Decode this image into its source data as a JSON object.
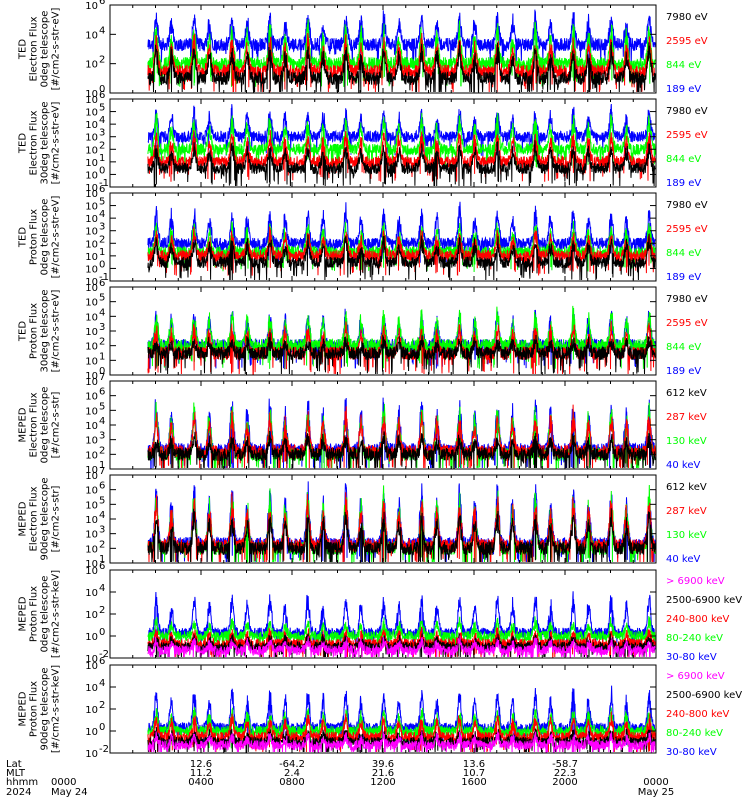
{
  "colors": {
    "black": "#000000",
    "red": "#ff0000",
    "green": "#00ff00",
    "blue": "#0000ff",
    "magenta": "#ff00ff"
  },
  "chart_data": [
    {
      "type": "line",
      "ylabel": [
        "TED",
        "Electron Flux",
        "0deg telescope",
        "[#/cm2-s-str-eV]"
      ],
      "yscale": "log",
      "ylim": [
        1,
        1000000
      ],
      "yticks": [
        {
          "b": "10",
          "e": "0",
          "v": 1
        },
        {
          "b": "10",
          "e": "2",
          "v": 100
        },
        {
          "b": "10",
          "e": "4",
          "v": 10000
        },
        {
          "b": "10",
          "e": "6",
          "v": 1000000
        }
      ],
      "legend": [
        {
          "label": "7980 eV",
          "color": "#000000"
        },
        {
          "label": "2595 eV",
          "color": "#ff0000"
        },
        {
          "label": "844 eV",
          "color": "#00ff00"
        },
        {
          "label": "189 eV",
          "color": "#0000ff"
        }
      ],
      "series": [
        {
          "color": "#000000",
          "base": 10,
          "peak": 2000
        },
        {
          "color": "#ff0000",
          "base": 30,
          "peak": 8000
        },
        {
          "color": "#00ff00",
          "base": 100,
          "peak": 60000
        },
        {
          "color": "#0000ff",
          "base": 2000,
          "peak": 300000
        }
      ]
    },
    {
      "type": "line",
      "ylabel": [
        "TED",
        "Electron Flux",
        "30deg telescope",
        "[#/cm2-s-str-eV]"
      ],
      "yscale": "log",
      "ylim": [
        0.1,
        1000000
      ],
      "yticks": [
        {
          "b": "10",
          "e": "-1",
          "v": 0.1
        },
        {
          "b": "10",
          "e": "0",
          "v": 1
        },
        {
          "b": "10",
          "e": "1",
          "v": 10
        },
        {
          "b": "10",
          "e": "2",
          "v": 100
        },
        {
          "b": "10",
          "e": "3",
          "v": 1000
        },
        {
          "b": "10",
          "e": "4",
          "v": 10000
        },
        {
          "b": "10",
          "e": "5",
          "v": 100000
        },
        {
          "b": "10",
          "e": "6",
          "v": 1000000
        }
      ],
      "legend": [
        {
          "label": "7980 eV",
          "color": "#000000"
        },
        {
          "label": "2595 eV",
          "color": "#ff0000"
        },
        {
          "label": "844 eV",
          "color": "#00ff00"
        },
        {
          "label": "189 eV",
          "color": "#0000ff"
        }
      ],
      "series": [
        {
          "color": "#000000",
          "base": 3,
          "peak": 300
        },
        {
          "color": "#ff0000",
          "base": 10,
          "peak": 3000
        },
        {
          "color": "#00ff00",
          "base": 100,
          "peak": 50000
        },
        {
          "color": "#0000ff",
          "base": 1000,
          "peak": 200000
        }
      ]
    },
    {
      "type": "line",
      "ylabel": [
        "TED",
        "Proton Flux",
        "0deg telescope",
        "[#/cm2-s-str-eV]"
      ],
      "yscale": "log",
      "ylim": [
        0.1,
        1000000
      ],
      "yticks": [
        {
          "b": "10",
          "e": "-1",
          "v": 0.1
        },
        {
          "b": "10",
          "e": "0",
          "v": 1
        },
        {
          "b": "10",
          "e": "1",
          "v": 10
        },
        {
          "b": "10",
          "e": "2",
          "v": 100
        },
        {
          "b": "10",
          "e": "3",
          "v": 1000
        },
        {
          "b": "10",
          "e": "4",
          "v": 10000
        },
        {
          "b": "10",
          "e": "5",
          "v": 100000
        },
        {
          "b": "10",
          "e": "6",
          "v": 1000000
        }
      ],
      "legend": [
        {
          "label": "7980 eV",
          "color": "#000000"
        },
        {
          "label": "2595 eV",
          "color": "#ff0000"
        },
        {
          "label": "844 eV",
          "color": "#00ff00"
        },
        {
          "label": "189 eV",
          "color": "#0000ff"
        }
      ],
      "series": [
        {
          "color": "#000000",
          "base": 3,
          "peak": 300
        },
        {
          "color": "#ff0000",
          "base": 10,
          "peak": 1000
        },
        {
          "color": "#00ff00",
          "base": 20,
          "peak": 5000
        },
        {
          "color": "#0000ff",
          "base": 100,
          "peak": 100000
        }
      ]
    },
    {
      "type": "line",
      "ylabel": [
        "TED",
        "Proton Flux",
        "30deg telescope",
        "[#/cm2-s-str-eV]"
      ],
      "yscale": "log",
      "ylim": [
        1,
        1000000
      ],
      "yticks": [
        {
          "b": "10",
          "e": "0",
          "v": 1
        },
        {
          "b": "10",
          "e": "1",
          "v": 10
        },
        {
          "b": "10",
          "e": "2",
          "v": 100
        },
        {
          "b": "10",
          "e": "3",
          "v": 1000
        },
        {
          "b": "10",
          "e": "4",
          "v": 10000
        },
        {
          "b": "10",
          "e": "5",
          "v": 100000
        },
        {
          "b": "10",
          "e": "6",
          "v": 1000000
        }
      ],
      "legend": [
        {
          "label": "7980 eV",
          "color": "#000000"
        },
        {
          "label": "2595 eV",
          "color": "#ff0000"
        },
        {
          "label": "844 eV",
          "color": "#00ff00"
        },
        {
          "label": "189 eV",
          "color": "#0000ff"
        }
      ],
      "series": [
        {
          "color": "#000000",
          "base": 30,
          "peak": 300
        },
        {
          "color": "#ff0000",
          "base": 30,
          "peak": 3000
        },
        {
          "color": "#00ff00",
          "base": 100,
          "peak": 30000
        },
        {
          "color": "#0000ff",
          "base": 100,
          "peak": 30000
        }
      ]
    },
    {
      "type": "line",
      "ylabel": [
        "MEPED",
        "Electron Flux",
        "0deg telescope",
        "[#/cm2-s-str]"
      ],
      "yscale": "log",
      "ylim": [
        10,
        10000000
      ],
      "yticks": [
        {
          "b": "10",
          "e": "1",
          "v": 10
        },
        {
          "b": "10",
          "e": "2",
          "v": 100
        },
        {
          "b": "10",
          "e": "3",
          "v": 1000
        },
        {
          "b": "10",
          "e": "4",
          "v": 10000
        },
        {
          "b": "10",
          "e": "5",
          "v": 100000
        },
        {
          "b": "10",
          "e": "6",
          "v": 1000000
        },
        {
          "b": "10",
          "e": "7",
          "v": 10000000
        }
      ],
      "legend": [
        {
          "label": "612 keV",
          "color": "#000000"
        },
        {
          "label": "287 keV",
          "color": "#ff0000"
        },
        {
          "label": "130 keV",
          "color": "#00ff00"
        },
        {
          "label": "40 keV",
          "color": "#0000ff"
        }
      ],
      "series": [
        {
          "color": "#000000",
          "base": 100,
          "peak": 2000
        },
        {
          "color": "#ff0000",
          "base": 150,
          "peak": 100000
        },
        {
          "color": "#00ff00",
          "base": 100,
          "peak": 300000
        },
        {
          "color": "#0000ff",
          "base": 200,
          "peak": 1000000
        }
      ]
    },
    {
      "type": "line",
      "ylabel": [
        "MEPED",
        "Electron Flux",
        "90deg telescope",
        "[#/cm2-s-str]"
      ],
      "yscale": "log",
      "ylim": [
        10,
        10000000
      ],
      "yticks": [
        {
          "b": "10",
          "e": "1",
          "v": 10
        },
        {
          "b": "10",
          "e": "2",
          "v": 100
        },
        {
          "b": "10",
          "e": "3",
          "v": 1000
        },
        {
          "b": "10",
          "e": "4",
          "v": 10000
        },
        {
          "b": "10",
          "e": "5",
          "v": 100000
        },
        {
          "b": "10",
          "e": "6",
          "v": 1000000
        },
        {
          "b": "10",
          "e": "7",
          "v": 10000000
        }
      ],
      "legend": [
        {
          "label": "612 keV",
          "color": "#000000"
        },
        {
          "label": "287 keV",
          "color": "#ff0000"
        },
        {
          "label": "130 keV",
          "color": "#00ff00"
        },
        {
          "label": "40 keV",
          "color": "#0000ff"
        }
      ],
      "series": [
        {
          "color": "#000000",
          "base": 100,
          "peak": 30000
        },
        {
          "color": "#ff0000",
          "base": 150,
          "peak": 300000
        },
        {
          "color": "#00ff00",
          "base": 100,
          "peak": 1000000
        },
        {
          "color": "#0000ff",
          "base": 200,
          "peak": 3000000
        }
      ]
    },
    {
      "type": "line",
      "ylabel": [
        "MEPED",
        "Proton Flux",
        "0deg telescope",
        "[#/cm2-s-str-keV]"
      ],
      "yscale": "log",
      "ylim": [
        0.01,
        1000000
      ],
      "yticks": [
        {
          "b": "10",
          "e": "-2",
          "v": 0.01
        },
        {
          "b": "10",
          "e": "0",
          "v": 1
        },
        {
          "b": "10",
          "e": "2",
          "v": 100
        },
        {
          "b": "10",
          "e": "4",
          "v": 10000
        },
        {
          "b": "10",
          "e": "6",
          "v": 1000000
        }
      ],
      "legend": [
        {
          "label": "> 6900 keV",
          "color": "#ff00ff"
        },
        {
          "label": "2500-6900 keV",
          "color": "#000000"
        },
        {
          "label": "240-800 keV",
          "color": "#ff0000"
        },
        {
          "label": "80-240 keV",
          "color": "#00ff00"
        },
        {
          "label": "30-80 keV",
          "color": "#0000ff"
        }
      ],
      "series": [
        {
          "color": "#ff00ff",
          "base": 0.05,
          "peak": 0.5
        },
        {
          "color": "#000000",
          "base": 0.1,
          "peak": 1
        },
        {
          "color": "#ff0000",
          "base": 0.2,
          "peak": 3
        },
        {
          "color": "#00ff00",
          "base": 1,
          "peak": 30
        },
        {
          "color": "#0000ff",
          "base": 2,
          "peak": 10000
        }
      ]
    },
    {
      "type": "line",
      "ylabel": [
        "MEPED",
        "Proton Flux",
        "90deg telescope",
        "[#/cm2-s-str-keV]"
      ],
      "yscale": "log",
      "ylim": [
        0.01,
        1000000
      ],
      "yticks": [
        {
          "b": "10",
          "e": "-2",
          "v": 0.01
        },
        {
          "b": "10",
          "e": "0",
          "v": 1
        },
        {
          "b": "10",
          "e": "2",
          "v": 100
        },
        {
          "b": "10",
          "e": "4",
          "v": 10000
        },
        {
          "b": "10",
          "e": "6",
          "v": 1000000
        }
      ],
      "legend": [
        {
          "label": "> 6900 keV",
          "color": "#ff00ff"
        },
        {
          "label": "2500-6900 keV",
          "color": "#000000"
        },
        {
          "label": "240-800 keV",
          "color": "#ff0000"
        },
        {
          "label": "80-240 keV",
          "color": "#00ff00"
        },
        {
          "label": "30-80 keV",
          "color": "#0000ff"
        }
      ],
      "series": [
        {
          "color": "#ff00ff",
          "base": 0.05,
          "peak": 0.5
        },
        {
          "color": "#000000",
          "base": 0.1,
          "peak": 1
        },
        {
          "color": "#ff0000",
          "base": 0.3,
          "peak": 30
        },
        {
          "color": "#00ff00",
          "base": 1,
          "peak": 100
        },
        {
          "color": "#0000ff",
          "base": 2,
          "peak": 10000
        }
      ]
    }
  ],
  "x_axis": {
    "row_labels": [
      "Lat",
      "MLT",
      "hhmm",
      "2024"
    ],
    "columns": [
      {
        "t": 0,
        "lat": "",
        "mlt": "",
        "hhmm": "0000",
        "date": "May 24"
      },
      {
        "t": 240,
        "lat": "12.6",
        "mlt": "11.2",
        "hhmm": "0400",
        "date": ""
      },
      {
        "t": 480,
        "lat": "-64.2",
        "mlt": "2.4",
        "hhmm": "0800",
        "date": ""
      },
      {
        "t": 720,
        "lat": "39.6",
        "mlt": "21.6",
        "hhmm": "1200",
        "date": ""
      },
      {
        "t": 960,
        "lat": "13.6",
        "mlt": "10.7",
        "hhmm": "1600",
        "date": ""
      },
      {
        "t": 1200,
        "lat": "-58.7",
        "mlt": "22.3",
        "hhmm": "2000",
        "date": ""
      },
      {
        "t": 1440,
        "lat": "",
        "mlt": "",
        "hhmm": "0000",
        "date": "May 25"
      }
    ],
    "xlim": [
      0,
      1440
    ]
  }
}
